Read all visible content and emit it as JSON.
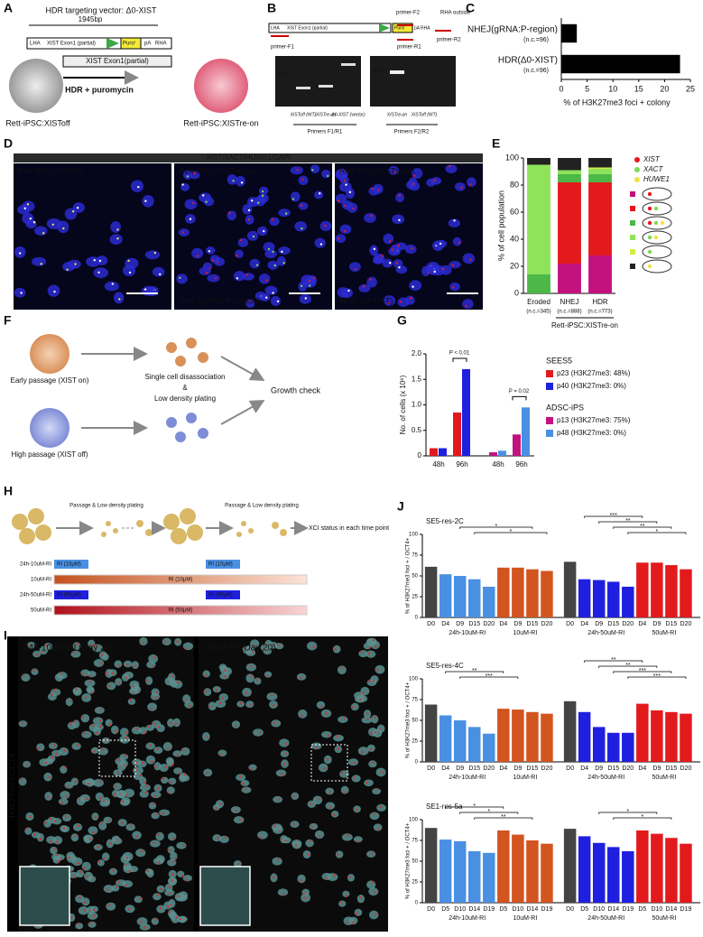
{
  "panel_letters": [
    "A",
    "B",
    "C",
    "D",
    "E",
    "F",
    "G",
    "H",
    "I",
    "J"
  ],
  "panel_a": {
    "vector_title": "HDR targeting vector: Δ0-XIST",
    "length": "1945bp",
    "lha": "LHA",
    "exon_partial": "XIST Exon1 (partial)",
    "puro": "Puroʳ",
    "pa": "pA",
    "rha": "RHA",
    "genomic": "XIST Exon1(partial)",
    "step": "HDR + puromycin",
    "left_cell": "Rett-iPSC:XISToff",
    "right_cell": "Rett-iPSC:XISTre-on"
  },
  "panel_b": {
    "lha": "LHA",
    "exon_partial": "XIST Exon1 (partial)",
    "puro": "Puroʳ",
    "pa": "pA",
    "rha": "RHA",
    "primer_f1": "primer-F1",
    "primer_f2": "primer-F2",
    "primer_r1": "primer-R1",
    "primer_r2": "primer-R2",
    "rha_outside": "RHA outside",
    "ladder_1": "3Kbp",
    "ladder_2": "2Kbp",
    "lanes_1": [
      "XISToff (WT)",
      "XISTre-on",
      "Δ0-XIST (vector)"
    ],
    "lanes_2": [
      "XISTre-on",
      "XISToff (WT)"
    ],
    "primers_1": "Primers F1/R1",
    "primers_2": "Primers F2/R2"
  },
  "panel_d": {
    "stain_label": "XIST/XACT/HUWE1/DAPI",
    "images": [
      {
        "title": "Rett-iPSC:XISToff"
      },
      {
        "title": "Rett-iPSC:XISTre-on",
        "caption": "NHEJ(gRNA:P-region)"
      },
      {
        "title": "Rett-iPSC:XISTre-on",
        "caption": "HDR(Δ0-XIST)"
      }
    ]
  },
  "panel_f": {
    "early": "Early passage (XIST on)",
    "high": "High passage (XIST off)",
    "step_1": "Single cell disassociation",
    "step_and": "&",
    "step_2": "Low density plating",
    "result": "Growth check"
  },
  "panel_h": {
    "steps": [
      "Passage & Low density plating",
      "Passage & Low density plating"
    ],
    "end_label": "XCI status in each time point",
    "rows": [
      {
        "name": "24h-10uM-RI",
        "labels": [
          "RI (10μM)",
          "RI (10μM)"
        ]
      },
      {
        "name": "10uM-RI",
        "labels": [
          "RI (10μM)"
        ]
      },
      {
        "name": "24h-50uM-RI",
        "labels": [
          "RI (50μM)",
          "RI (50μM)"
        ]
      },
      {
        "name": "50uM-RI",
        "labels": [
          "RI (50μM)"
        ]
      }
    ]
  },
  "panel_i": {
    "images": [
      "24h-10uM-RI (Day 20)",
      "10uM-RI (Day 20)"
    ],
    "stain": "H3K27me3/OCT4"
  },
  "chart_data": [
    {
      "type": "hbar",
      "categories": [
        "NHEJ(gRNA:P-region)",
        "HDR(Δ0-XIST)"
      ],
      "n_labels": [
        "(n.c.=96)",
        "(n.c.=96)"
      ],
      "values": [
        3,
        23
      ],
      "color": "#000000",
      "xlabel": "% of H3K27me3 foci + colony",
      "xlim": [
        0,
        25
      ],
      "xticks": [
        0,
        5,
        10,
        15,
        20,
        25
      ]
    },
    {
      "type": "stacked",
      "categories": [
        "Eroded",
        "NHEJ",
        "HDR"
      ],
      "n_labels": [
        "(n.c.=345)",
        "(n.c.=888)",
        "(n.c.=773)"
      ],
      "group_label": "Rett-iPSC:XISTre-on",
      "ylabel": "% of cell population",
      "ylim": [
        0,
        100
      ],
      "yticks": [
        0,
        20,
        40,
        60,
        80,
        100
      ],
      "marker_legend": [
        {
          "name": "XIST",
          "color": "#e31a1c"
        },
        {
          "name": "XACT",
          "color": "#7ed957"
        },
        {
          "name": "HUWE1",
          "color": "#f0e442"
        }
      ],
      "series": [
        {
          "color": "#c2127e",
          "values": [
            0,
            22,
            28
          ]
        },
        {
          "color": "#e31a1c",
          "values": [
            0,
            60,
            54
          ]
        },
        {
          "color": "#4db848",
          "values": [
            14,
            6,
            6
          ]
        },
        {
          "color": "#8fe35a",
          "values": [
            81,
            3,
            4
          ]
        },
        {
          "color": "#d6ea4a",
          "values": [
            0,
            0,
            1
          ]
        },
        {
          "color": "#222222",
          "values": [
            5,
            9,
            7
          ]
        }
      ]
    },
    {
      "type": "grouped",
      "categories": [
        "48h",
        "96h",
        "48h",
        "96h"
      ],
      "ylabel": "No. of cells (x 10⁶)",
      "ylim": [
        0,
        2
      ],
      "yticks": [
        0,
        0.5,
        {
          "value": 1,
          "label": "1.0"
        },
        1.5,
        {
          "value": 2,
          "label": "2.0"
        }
      ],
      "legend_groups": [
        "SEES5",
        "ADSC-iPS"
      ],
      "annotations": [
        "P < 0.01",
        "P = 0.02"
      ],
      "series": [
        {
          "name": "p23 (H3K27me3: 48%)",
          "color": "#e31a1c",
          "values": [
            0.15,
            0.85,
            null,
            null
          ]
        },
        {
          "name": "p40 (H3K27me3: 0%)",
          "color": "#1f1fe0",
          "values": [
            0.15,
            1.7,
            null,
            null
          ]
        },
        {
          "name": "p13 (H3K27me3: 75%)",
          "color": "#c2127e",
          "values": [
            null,
            null,
            0.07,
            0.42
          ]
        },
        {
          "name": "p48 (H3K27me3: 0%)",
          "color": "#4a90e2",
          "values": [
            null,
            null,
            0.1,
            0.95
          ]
        }
      ]
    },
    {
      "type": "timecourse",
      "title": "SE5-res-2C",
      "ylabel": "% of H3K27me3 foci + / OCT4+",
      "ylim": [
        0,
        100
      ],
      "yticks": [
        0,
        25,
        50,
        75,
        100
      ],
      "categories": [
        "D0",
        "D4",
        "D9",
        "D15",
        "D20",
        "D4",
        "D9",
        "D15",
        "D20",
        "D0",
        "D4",
        "D9",
        "D15",
        "D20",
        "D4",
        "D9",
        "D15",
        "D20"
      ],
      "values": [
        61,
        52,
        50,
        46,
        37,
        60,
        60,
        58,
        56,
        67,
        46,
        45,
        43,
        37,
        66,
        66,
        63,
        58
      ],
      "group_labels": [
        "24h-10uM-RI",
        "10uM-RI",
        "24h-50uM-RI",
        "50uM-RI"
      ],
      "group_colors": [
        "#4a90e2",
        "#d2541f",
        "#1f1fe0",
        "#e31a1c"
      ],
      "baseline_color": "#444444",
      "significance": [
        "*",
        "*",
        "***",
        "**",
        "**",
        "*"
      ]
    },
    {
      "type": "timecourse",
      "title": "SE5-res-4C",
      "ylabel": "% of H3K27me3 foci + / OCT4+",
      "ylim": [
        0,
        100
      ],
      "yticks": [
        0,
        25,
        50,
        75,
        100
      ],
      "categories": [
        "D0",
        "D4",
        "D9",
        "D15",
        "D20",
        "D4",
        "D9",
        "D15",
        "D20",
        "D0",
        "D4",
        "D9",
        "D15",
        "D20",
        "D4",
        "D9",
        "D15",
        "D20"
      ],
      "values": [
        69,
        56,
        50,
        42,
        34,
        64,
        63,
        60,
        58,
        73,
        60,
        42,
        35,
        35,
        70,
        62,
        60,
        58
      ],
      "group_labels": [
        "24h-10uM-RI",
        "10uM-RI",
        "24h-50uM-RI",
        "50uM-RI"
      ],
      "group_colors": [
        "#4a90e2",
        "#d2541f",
        "#1f1fe0",
        "#e31a1c"
      ],
      "baseline_color": "#444444",
      "significance": [
        "**",
        "***",
        "**",
        "**",
        "***",
        "***"
      ]
    },
    {
      "type": "timecourse",
      "title": "SE1-res-5a",
      "ylabel": "% of H3K27me3 foci + / OCT4+",
      "ylim": [
        0,
        100
      ],
      "yticks": [
        0,
        25,
        50,
        75,
        100
      ],
      "categories": [
        "D0",
        "D5",
        "D10",
        "D14",
        "D19",
        "D5",
        "D10",
        "D14",
        "D19",
        "D0",
        "D5",
        "D10",
        "D14",
        "D19",
        "D5",
        "D10",
        "D14",
        "D19"
      ],
      "values": [
        90,
        76,
        74,
        62,
        60,
        87,
        82,
        75,
        71,
        89,
        80,
        72,
        67,
        62,
        87,
        83,
        78,
        71
      ],
      "group_labels": [
        "24h-10uM-RI",
        "10uM-RI",
        "24h-50uM-RI",
        "50uM-RI"
      ],
      "group_colors": [
        "#4a90e2",
        "#d2541f",
        "#1f1fe0",
        "#e31a1c"
      ],
      "baseline_color": "#444444",
      "significance": [
        "*",
        "*",
        "**",
        "*",
        "*"
      ]
    }
  ]
}
